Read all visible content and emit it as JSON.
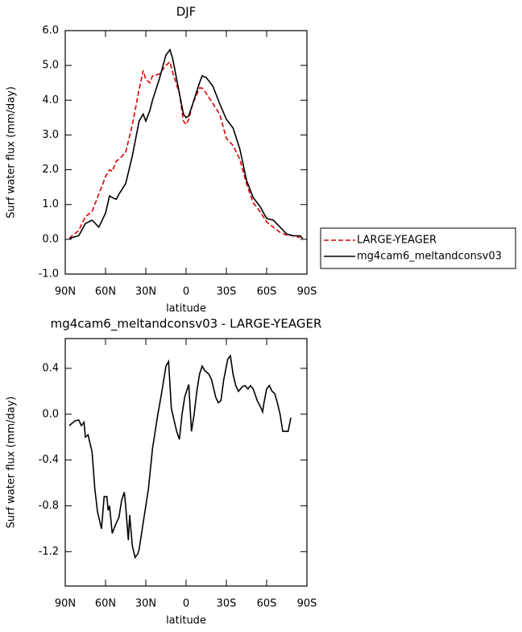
{
  "chart_data": [
    {
      "type": "line",
      "title": "DJF",
      "xlabel": "latitude",
      "ylabel": "Surf water flux (mm/day)",
      "x": [
        87,
        85,
        80,
        75,
        70,
        65,
        60,
        57,
        55,
        52,
        50,
        45,
        40,
        35,
        32,
        30,
        27,
        25,
        20,
        15,
        12,
        10,
        5,
        2,
        0,
        -2,
        -5,
        -10,
        -12,
        -15,
        -20,
        -25,
        -30,
        -35,
        -40,
        -45,
        -50,
        -55,
        -60,
        -65,
        -70,
        -75,
        -80,
        -85,
        -87
      ],
      "series": [
        {
          "name": "LARGE-YEAGER",
          "color": "#e00000",
          "linestyle": "dashed",
          "values": [
            0.02,
            0.1,
            0.25,
            0.65,
            0.8,
            1.3,
            1.8,
            2.0,
            1.95,
            2.25,
            2.3,
            2.5,
            3.3,
            4.3,
            4.85,
            4.6,
            4.5,
            4.7,
            4.75,
            5.0,
            5.1,
            4.8,
            4.2,
            3.4,
            3.3,
            3.45,
            3.9,
            4.35,
            4.35,
            4.2,
            3.9,
            3.6,
            2.9,
            2.7,
            2.3,
            1.6,
            1.05,
            0.8,
            0.5,
            0.35,
            0.2,
            0.12,
            0.1,
            0.05,
            null
          ]
        },
        {
          "name": "mg4cam6_meltandconsv03",
          "color": "#000000",
          "linestyle": "solid",
          "values": [
            0.02,
            0.05,
            0.1,
            0.45,
            0.55,
            0.35,
            0.75,
            1.25,
            1.2,
            1.15,
            1.3,
            1.6,
            2.4,
            3.4,
            3.6,
            3.4,
            3.7,
            4.0,
            4.6,
            5.3,
            5.45,
            5.2,
            4.2,
            3.6,
            3.5,
            3.55,
            3.9,
            4.5,
            4.7,
            4.65,
            4.4,
            3.9,
            3.45,
            3.2,
            2.6,
            1.7,
            1.2,
            0.95,
            0.6,
            0.55,
            0.35,
            0.15,
            0.1,
            0.1,
            0.02
          ]
        }
      ],
      "xlim": [
        90,
        -90
      ],
      "xticks": [
        {
          "value": 90,
          "label": "90N"
        },
        {
          "value": 60,
          "label": "60N"
        },
        {
          "value": 30,
          "label": "30N"
        },
        0,
        {
          "value": -30,
          "label": "30S"
        },
        {
          "value": -60,
          "label": "60S"
        },
        {
          "value": -90,
          "label": "90S"
        }
      ],
      "ylim": [
        -1,
        6
      ],
      "yticks": [
        {
          "value": -1,
          "label": "-1.0"
        },
        {
          "value": 0,
          "label": "0.0"
        },
        {
          "value": 1,
          "label": "1.0"
        },
        {
          "value": 2,
          "label": "2.0"
        },
        {
          "value": 3,
          "label": "3.0"
        },
        {
          "value": 4,
          "label": "4.0"
        },
        {
          "value": 5,
          "label": "5.0"
        },
        {
          "value": 6,
          "label": "6.0"
        }
      ],
      "legend": "right"
    },
    {
      "type": "line",
      "title": "mg4cam6_meltandconsv03 - LARGE-YEAGER",
      "xlabel": "latitude",
      "ylabel": "Surf water flux (mm/day)",
      "x": [
        87,
        83,
        80,
        78,
        76,
        75,
        73,
        70,
        68,
        66,
        63,
        61,
        59,
        58,
        57,
        55,
        52,
        50,
        48,
        46,
        45,
        43,
        42,
        40,
        38,
        36,
        35,
        32,
        28,
        25,
        21,
        18,
        15,
        13,
        11,
        9,
        7,
        5,
        3,
        1,
        -2,
        -4,
        -6,
        -8,
        -10,
        -12,
        -14,
        -17,
        -19,
        -22,
        -24,
        -26,
        -28,
        -31,
        -33,
        -35,
        -37,
        -39,
        -42,
        -44,
        -46,
        -48,
        -50,
        -53,
        -56,
        -57,
        -58,
        -60,
        -62,
        -64,
        -66,
        -68,
        -70,
        -72,
        -76,
        -78
      ],
      "series": [
        {
          "name": "mg4cam6_meltandconsv03 - LARGE-YEAGER",
          "color": "#000000",
          "linestyle": "solid",
          "values": [
            -0.1,
            -0.06,
            -0.05,
            -0.1,
            -0.07,
            -0.2,
            -0.18,
            -0.33,
            -0.65,
            -0.85,
            -1.0,
            -0.72,
            -0.72,
            -0.84,
            -0.8,
            -1.04,
            -0.95,
            -0.9,
            -0.75,
            -0.68,
            -0.8,
            -1.1,
            -0.88,
            -1.15,
            -1.25,
            -1.22,
            -1.18,
            -0.95,
            -0.65,
            -0.3,
            0.0,
            0.2,
            0.42,
            0.46,
            0.05,
            -0.05,
            -0.15,
            -0.22,
            0.0,
            0.15,
            0.26,
            -0.15,
            0.0,
            0.2,
            0.35,
            0.42,
            0.38,
            0.35,
            0.3,
            0.15,
            0.1,
            0.12,
            0.3,
            0.48,
            0.51,
            0.35,
            0.25,
            0.2,
            0.24,
            0.25,
            0.22,
            0.25,
            0.22,
            0.12,
            0.05,
            0.02,
            0.1,
            0.22,
            0.25,
            0.2,
            0.18,
            0.1,
            0.0,
            -0.15,
            -0.15,
            -0.03
          ]
        }
      ],
      "xlim": [
        90,
        -90
      ],
      "xticks": [
        {
          "value": 90,
          "label": "90N"
        },
        {
          "value": 60,
          "label": "60N"
        },
        {
          "value": 30,
          "label": "30N"
        },
        0,
        {
          "value": -30,
          "label": "30S"
        },
        {
          "value": -60,
          "label": "60S"
        },
        {
          "value": -90,
          "label": "90S"
        }
      ],
      "ylim": [
        -1.5,
        0.66
      ],
      "yticks": [
        -1.2,
        -0.8,
        -0.4,
        {
          "value": 0,
          "label": "0.0"
        },
        0.4
      ]
    }
  ]
}
